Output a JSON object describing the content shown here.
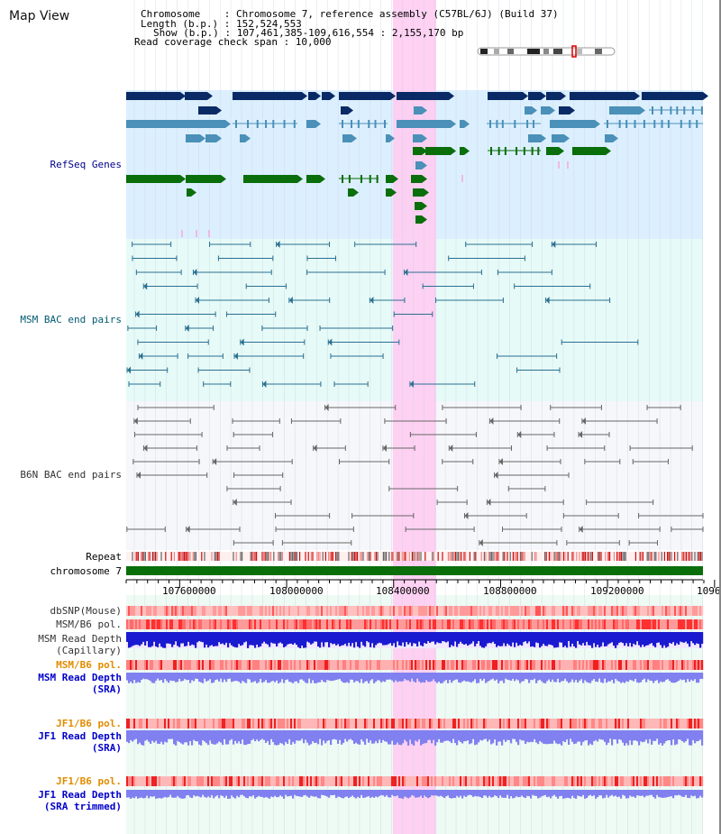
{
  "title": "Map View",
  "info": {
    "chromosome": "Chromosome    : Chromosome 7, reference assembly (C57BL/6J) (Build 37)",
    "length": "Length (b.p.) : 152,524,553",
    "show": "Show (b.p.) : 107,461,385-109,616,554 : 2,155,170 bp",
    "span": "Read coverage check span : 10,000"
  },
  "tracks": {
    "refseq": "RefSeq Genes",
    "msm_bac": "MSM BAC end pairs",
    "b6n_bac": "B6N BAC end pairs",
    "repeat": "Repeat",
    "chromosome": "chromosome 7",
    "dbsnp": "dbSNP(Mouse)",
    "msm_b6_pol": "MSM/B6 pol.",
    "msm_depth_cap_1": "MSM Read Depth",
    "msm_depth_cap_2": "(Capillary)",
    "msm_b6_pol2": "MSM/B6 pol.",
    "msm_depth_sra_1": "MSM Read Depth",
    "msm_depth_sra_2": "(SRA)",
    "jf1_pol": "JF1/B6 pol.",
    "jf1_depth_1": "JF1 Read Depth",
    "jf1_depth_2": "(SRA)",
    "jf1_pol2": "JF1/B6 pol.",
    "jf1_trim_1": "JF1 Read Depth",
    "jf1_trim_2": "(SRA trimmed)"
  },
  "axis": {
    "ticks": [
      "107600000",
      "108000000",
      "108400000",
      "108800000",
      "109200000",
      "1096"
    ]
  },
  "colors": {
    "navy_gene": "#0a2a66",
    "light_gene": "#4a90b8",
    "green_gene": "#0a6e0a",
    "refseq_bg": "#dcefff",
    "msm_bg": "#e6faf8",
    "b6n_bg": "#f5f7fa",
    "highlight": "#ffccf2",
    "msm_pair": "#2a7090",
    "b6n_pair": "#666666",
    "depth_blue": "#1a1ad0",
    "depth_light": "#8080f0"
  }
}
